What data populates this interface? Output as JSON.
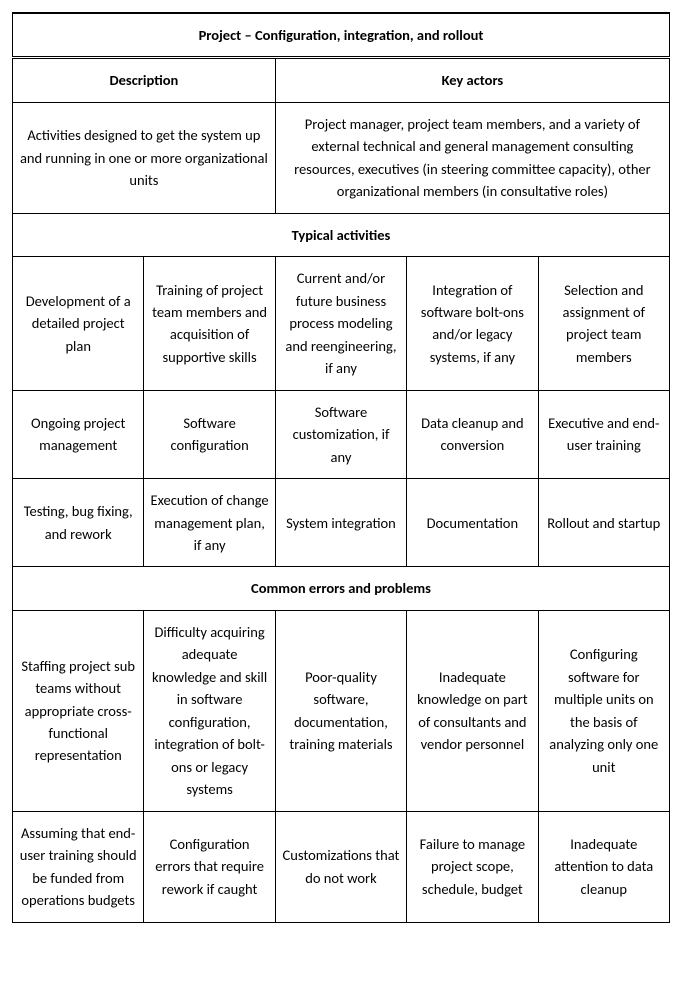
{
  "title": "Project – Configuration, integration, and rollout",
  "headers": {
    "description": "Description",
    "key_actors": "Key actors"
  },
  "description_text": "Activities designed to get the system up and running in one or more organizational units",
  "key_actors_text": "Project manager, project team members, and a variety of external technical and general management consulting resources, executives (in steering committee capacity), other organizational members (in consultative roles)",
  "sections": {
    "activities_header": "Typical activities",
    "errors_header": "Common errors and problems"
  },
  "activities": {
    "r1": {
      "c1": "Development of a detailed project plan",
      "c2": "Training of project team members and acquisition of supportive skills",
      "c3": "Current and/or future business process modeling and reengineering, if any",
      "c4": "Integration of software bolt-ons and/or legacy systems, if any",
      "c5": "Selection and assignment of project team members"
    },
    "r2": {
      "c1": "Ongoing project management",
      "c2": "Software configuration",
      "c3": "Software customization, if any",
      "c4": "Data cleanup and conversion",
      "c5": "Executive and end-user training"
    },
    "r3": {
      "c1": "Testing, bug fixing, and rework",
      "c2": "Execution of change management plan, if any",
      "c3": "System integration",
      "c4": "Documentation",
      "c5": "Rollout and startup"
    }
  },
  "errors": {
    "r1": {
      "c1": "Staffing project sub teams without appropriate cross-functional representation",
      "c2": "Difficulty acquiring adequate knowledge and skill in software configuration, integration of bolt-ons or legacy systems",
      "c3": "Poor-quality software, documentation, training materials",
      "c4": "Inadequate knowledge on part of consultants and vendor personnel",
      "c5": "Configuring software for multiple units on the basis of analyzing only one unit"
    },
    "r2": {
      "c1": "Assuming that end-user training should be funded from operations budgets",
      "c2": "Configuration errors that require rework if caught",
      "c3": "Customizations that do not work",
      "c4": "Failure to manage project scope, schedule, budget",
      "c5": "Inadequate attention to data cleanup"
    }
  }
}
